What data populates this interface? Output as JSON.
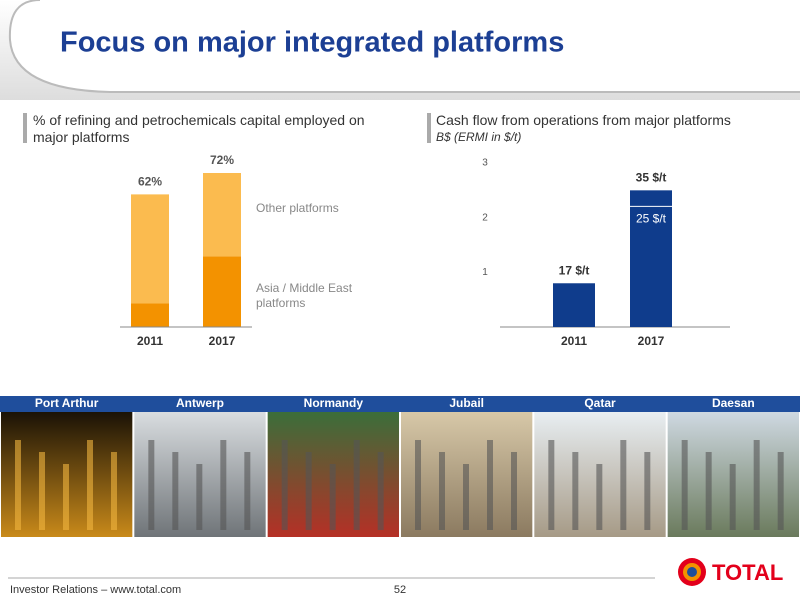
{
  "header": {
    "title": "Focus on major integrated platforms"
  },
  "chart_data": [
    {
      "type": "stacked_bar",
      "title": "% of refining and petrochemicals capital employed on major platforms",
      "categories": [
        "2011",
        "2017"
      ],
      "series": [
        {
          "name": "Asia / Middle East platforms",
          "color": "#f39200",
          "values": [
            11,
            33
          ]
        },
        {
          "name": "Other platforms",
          "color": "#fbbb4f",
          "values": [
            51,
            39
          ]
        }
      ],
      "totals": [
        62,
        72
      ],
      "total_labels": [
        "62%",
        "72%"
      ]
    },
    {
      "type": "bar",
      "title": "Cash flow from operations from major platforms",
      "subtitle": "B$ (ERMI in $/t)",
      "categories": [
        "2011",
        "2017"
      ],
      "values": [
        0.8,
        2.5
      ],
      "color": "#0f3c8c",
      "ylim": [
        0,
        3
      ],
      "yticks": [
        1,
        2,
        3
      ],
      "annotations": [
        "17 $/t",
        "35 $/t"
      ],
      "inner_label": "25 $/t"
    }
  ],
  "sites": [
    "Port Arthur",
    "Antwerp",
    "Normandy",
    "Jubail",
    "Qatar",
    "Daesan"
  ],
  "footer": {
    "source": "Investor Relations – www.total.com",
    "page": "52",
    "logo": "TOTAL"
  }
}
